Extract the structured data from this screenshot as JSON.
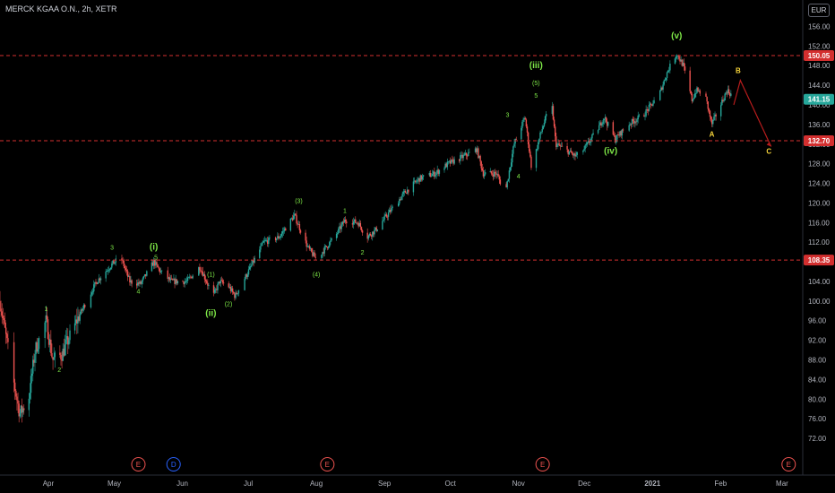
{
  "header": {
    "symbol_title": "MERCK KGAA O.N., 2h, XETR",
    "currency": "EUR"
  },
  "colors": {
    "background": "#000000",
    "bull": "#26a69a",
    "bear": "#ef5350",
    "wave_label": "#7ee847",
    "corrective_label": "#f5d33a",
    "level_line": "#d32f2f",
    "projection": "#b71c1c",
    "last_price": "#26a69a",
    "earnings_event": "#ef5350",
    "dividend_event": "#2962ff"
  },
  "chart_data": {
    "type": "candlestick",
    "y_axis": {
      "range": [
        70,
        157
      ],
      "ticks": [
        "72.00",
        "76.00",
        "80.00",
        "84.00",
        "88.00",
        "92.00",
        "96.00",
        "100.00",
        "104.00",
        "108.00",
        "112.00",
        "116.00",
        "120.00",
        "124.00",
        "128.00",
        "132.00",
        "136.00",
        "140.00",
        "144.00",
        "148.00",
        "152.00",
        "156.00"
      ]
    },
    "x_axis": {
      "range": [
        "2020-03-10",
        "2021-03-10"
      ],
      "labels": [
        {
          "date": "2020-04-01",
          "text": "Apr"
        },
        {
          "date": "2020-05-01",
          "text": "May"
        },
        {
          "date": "2020-06-01",
          "text": "Jun"
        },
        {
          "date": "2020-07-01",
          "text": "Jul"
        },
        {
          "date": "2020-08-01",
          "text": "Aug"
        },
        {
          "date": "2020-09-01",
          "text": "Sep"
        },
        {
          "date": "2020-10-01",
          "text": "Oct"
        },
        {
          "date": "2020-11-01",
          "text": "Nov"
        },
        {
          "date": "2020-12-01",
          "text": "Dec"
        },
        {
          "date": "2021-01-01",
          "text": "2021"
        },
        {
          "date": "2021-02-01",
          "text": "Feb"
        },
        {
          "date": "2021-03-01",
          "text": "Mar"
        }
      ]
    },
    "price_path": [
      [
        "2020-03-10",
        100.0
      ],
      [
        "2020-03-16",
        84.0
      ],
      [
        "2020-03-19",
        77.0
      ],
      [
        "2020-03-23",
        80.0
      ],
      [
        "2020-03-26",
        90.0
      ],
      [
        "2020-03-31",
        96.0
      ],
      [
        "2020-04-03",
        88.0
      ],
      [
        "2020-04-07",
        89.0
      ],
      [
        "2020-04-15",
        97.0
      ],
      [
        "2020-04-23",
        104.0
      ],
      [
        "2020-04-30",
        107.5
      ],
      [
        "2020-05-04",
        109.0
      ],
      [
        "2020-05-08",
        104.0
      ],
      [
        "2020-05-13",
        103.5
      ],
      [
        "2020-05-19",
        108.0
      ],
      [
        "2020-05-22",
        106.0
      ],
      [
        "2020-05-27",
        104.0
      ],
      [
        "2020-06-03",
        104.0
      ],
      [
        "2020-06-09",
        107.0
      ],
      [
        "2020-06-15",
        101.0
      ],
      [
        "2020-06-18",
        104.0
      ],
      [
        "2020-06-22",
        103.0
      ],
      [
        "2020-06-25",
        101.0
      ],
      [
        "2020-07-01",
        106.0
      ],
      [
        "2020-07-08",
        112.0
      ],
      [
        "2020-07-15",
        113.0
      ],
      [
        "2020-07-22",
        117.5
      ],
      [
        "2020-07-28",
        111.0
      ],
      [
        "2020-08-01",
        108.5
      ],
      [
        "2020-08-10",
        113.5
      ],
      [
        "2020-08-14",
        116.5
      ],
      [
        "2020-08-20",
        116.0
      ],
      [
        "2020-08-24",
        113.0
      ],
      [
        "2020-08-28",
        114.5
      ],
      [
        "2020-09-03",
        118.0
      ],
      [
        "2020-09-10",
        122.0
      ],
      [
        "2020-09-17",
        125.0
      ],
      [
        "2020-09-24",
        126.0
      ],
      [
        "2020-09-30",
        128.0
      ],
      [
        "2020-10-07",
        129.5
      ],
      [
        "2020-10-13",
        131.0
      ],
      [
        "2020-10-16",
        126.0
      ],
      [
        "2020-10-22",
        126.0
      ],
      [
        "2020-10-26",
        122.0
      ],
      [
        "2020-10-30",
        132.0
      ],
      [
        "2020-11-04",
        137.5
      ],
      [
        "2020-11-07",
        127.0
      ],
      [
        "2020-11-11",
        134.0
      ],
      [
        "2020-11-16",
        141.0
      ],
      [
        "2020-11-18",
        132.0
      ],
      [
        "2020-11-22",
        131.0
      ],
      [
        "2020-11-27",
        129.5
      ],
      [
        "2020-12-01",
        131.0
      ],
      [
        "2020-12-07",
        135.0
      ],
      [
        "2020-12-10",
        137.5
      ],
      [
        "2020-12-15",
        133.0
      ],
      [
        "2020-12-21",
        136.0
      ],
      [
        "2020-12-28",
        138.0
      ],
      [
        "2021-01-04",
        142.0
      ],
      [
        "2021-01-08",
        147.0
      ],
      [
        "2021-01-12",
        150.5
      ],
      [
        "2021-01-15",
        148.0
      ],
      [
        "2021-01-19",
        141.0
      ],
      [
        "2021-01-21",
        143.0
      ],
      [
        "2021-01-25",
        142.0
      ],
      [
        "2021-01-28",
        136.0
      ],
      [
        "2021-02-01",
        140.0
      ],
      [
        "2021-02-04",
        143.0
      ],
      [
        "2021-02-07",
        141.5
      ]
    ],
    "horizontal_levels": [
      {
        "price": 150.05,
        "label": "150.05"
      },
      {
        "price": 132.7,
        "label": "132.70"
      },
      {
        "price": 108.35,
        "label": "108.35"
      }
    ],
    "last_price": {
      "price": 141.15,
      "label": "141.15"
    },
    "wave_labels": [
      {
        "date": "2020-03-31",
        "price": 98.0,
        "text": "1",
        "kind": "minor"
      },
      {
        "date": "2020-04-06",
        "price": 85.5,
        "text": "2",
        "kind": "minor"
      },
      {
        "date": "2020-04-30",
        "price": 110.5,
        "text": "3",
        "kind": "minor"
      },
      {
        "date": "2020-05-12",
        "price": 101.5,
        "text": "4",
        "kind": "minor"
      },
      {
        "date": "2020-05-20",
        "price": 108.5,
        "text": "5",
        "kind": "minor"
      },
      {
        "date": "2020-05-19",
        "price": 110.5,
        "text": "(i)",
        "kind": "major"
      },
      {
        "date": "2020-06-14",
        "price": 105.0,
        "text": "(1)",
        "kind": "minor"
      },
      {
        "date": "2020-06-14",
        "price": 97.0,
        "text": "(ii)",
        "kind": "major"
      },
      {
        "date": "2020-06-22",
        "price": 99.0,
        "text": "(2)",
        "kind": "minor"
      },
      {
        "date": "2020-07-24",
        "price": 120.0,
        "text": "(3)",
        "kind": "minor"
      },
      {
        "date": "2020-08-01",
        "price": 105.0,
        "text": "(4)",
        "kind": "minor"
      },
      {
        "date": "2020-08-14",
        "price": 118.0,
        "text": "1",
        "kind": "minor"
      },
      {
        "date": "2020-08-22",
        "price": 109.5,
        "text": "2",
        "kind": "minor"
      },
      {
        "date": "2020-10-27",
        "price": 137.5,
        "text": "3",
        "kind": "minor"
      },
      {
        "date": "2020-11-01",
        "price": 125.0,
        "text": "4",
        "kind": "minor"
      },
      {
        "date": "2020-11-09",
        "price": 144.0,
        "text": "(5)",
        "kind": "minor"
      },
      {
        "date": "2020-11-09",
        "price": 141.5,
        "text": "5",
        "kind": "minor"
      },
      {
        "date": "2020-11-09",
        "price": 147.5,
        "text": "(iii)",
        "kind": "major"
      },
      {
        "date": "2020-12-13",
        "price": 130.0,
        "text": "(iv)",
        "kind": "major"
      },
      {
        "date": "2021-01-12",
        "price": 153.5,
        "text": "(v)",
        "kind": "major"
      }
    ],
    "corrective_labels": [
      {
        "date": "2021-01-28",
        "price": 133.5,
        "text": "A"
      },
      {
        "date": "2021-02-09",
        "price": 146.5,
        "text": "B"
      },
      {
        "date": "2021-02-23",
        "price": 130.0,
        "text": "C"
      }
    ],
    "projection_path": [
      [
        "2021-02-07",
        140.0
      ],
      [
        "2021-02-10",
        145.0
      ],
      [
        "2021-02-24",
        131.5
      ]
    ],
    "events": [
      {
        "date": "2020-05-12",
        "kind": "earnings",
        "text": "E"
      },
      {
        "date": "2020-05-28",
        "kind": "dividend",
        "text": "D"
      },
      {
        "date": "2020-08-06",
        "kind": "earnings",
        "text": "E"
      },
      {
        "date": "2020-11-12",
        "kind": "earnings",
        "text": "E"
      },
      {
        "date": "2021-03-04",
        "kind": "earnings",
        "text": "E"
      }
    ]
  }
}
